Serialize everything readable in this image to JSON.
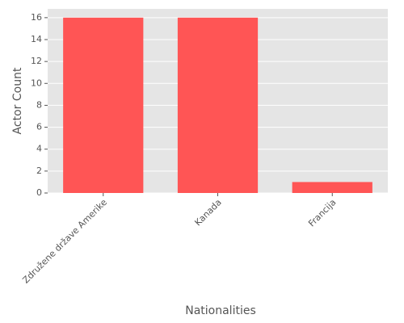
{
  "chart_data": {
    "type": "bar",
    "categories": [
      "Združene države Amerike",
      "Kanada",
      "Francija"
    ],
    "values": [
      16,
      16,
      1
    ],
    "color": "#ff5555",
    "xlabel": "Nationalities",
    "ylabel": "Actor Count",
    "ylim": [
      0,
      16.8
    ],
    "yticks": [
      0,
      2,
      4,
      6,
      8,
      10,
      12,
      14,
      16
    ],
    "grid": true
  }
}
